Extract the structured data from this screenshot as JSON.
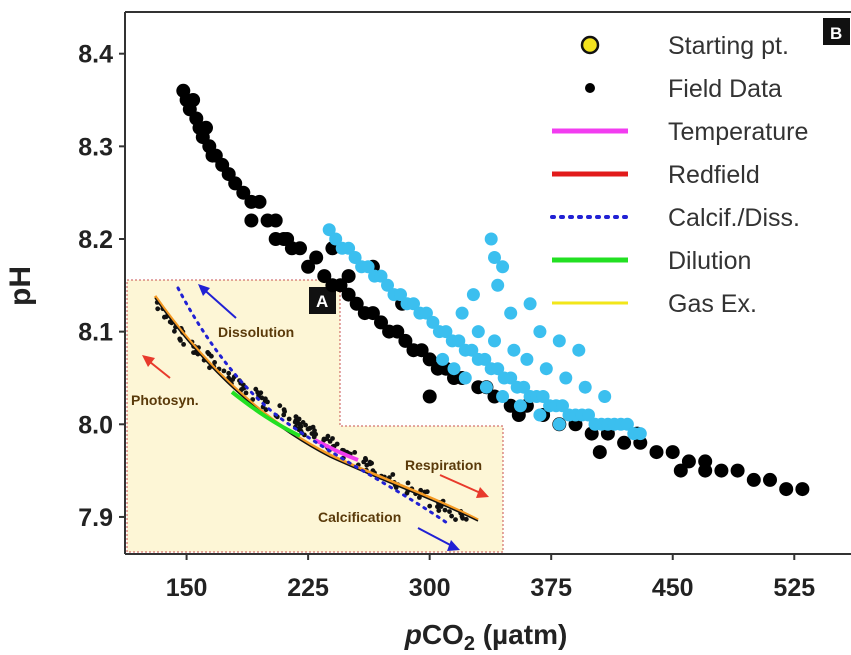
{
  "chart_data": {
    "type": "scatter",
    "xlabel_italic": "p",
    "xlabel_main": "CO",
    "xlabel_sub": "2",
    "xlabel_unit": " (µatm)",
    "ylabel": "pH",
    "xlim": [
      112,
      560
    ],
    "ylim": [
      7.86,
      8.445
    ],
    "x_ticks": [
      150,
      225,
      300,
      375,
      450,
      525
    ],
    "x_tick_labels": [
      "150",
      "225",
      "300",
      "375",
      "450",
      "525"
    ],
    "y_ticks": [
      8.4,
      8.3,
      8.2,
      8.1,
      8.0,
      7.9
    ],
    "y_tick_labels": [
      "8.4",
      "8.3",
      "8.2",
      "8.1",
      "8.0",
      "7.9"
    ],
    "panel_label_main": "B",
    "colors": {
      "field": "#000000",
      "highlight": "#3bbfef",
      "inset_bg": "#fdf6d6",
      "inset_border": "#c85050"
    },
    "series": [
      {
        "name": "Field Data",
        "color": "#000000",
        "points": [
          [
            148,
            8.36
          ],
          [
            150,
            8.35
          ],
          [
            152,
            8.34
          ],
          [
            154,
            8.35
          ],
          [
            156,
            8.33
          ],
          [
            158,
            8.32
          ],
          [
            160,
            8.31
          ],
          [
            162,
            8.32
          ],
          [
            164,
            8.3
          ],
          [
            166,
            8.29
          ],
          [
            168,
            8.29
          ],
          [
            172,
            8.28
          ],
          [
            176,
            8.27
          ],
          [
            180,
            8.26
          ],
          [
            185,
            8.25
          ],
          [
            190,
            8.24
          ],
          [
            195,
            8.24
          ],
          [
            200,
            8.22
          ],
          [
            205,
            8.22
          ],
          [
            210,
            8.2
          ],
          [
            215,
            8.19
          ],
          [
            220,
            8.19
          ],
          [
            225,
            8.17
          ],
          [
            230,
            8.18
          ],
          [
            235,
            8.16
          ],
          [
            240,
            8.15
          ],
          [
            245,
            8.15
          ],
          [
            250,
            8.14
          ],
          [
            255,
            8.13
          ],
          [
            260,
            8.12
          ],
          [
            265,
            8.12
          ],
          [
            270,
            8.11
          ],
          [
            275,
            8.1
          ],
          [
            280,
            8.1
          ],
          [
            285,
            8.09
          ],
          [
            290,
            8.08
          ],
          [
            295,
            8.08
          ],
          [
            300,
            8.07
          ],
          [
            305,
            8.06
          ],
          [
            310,
            8.06
          ],
          [
            315,
            8.05
          ],
          [
            320,
            8.05
          ],
          [
            330,
            8.04
          ],
          [
            340,
            8.03
          ],
          [
            350,
            8.02
          ],
          [
            360,
            8.02
          ],
          [
            370,
            8.01
          ],
          [
            380,
            8.0
          ],
          [
            390,
            8.0
          ],
          [
            400,
            7.99
          ],
          [
            410,
            7.99
          ],
          [
            420,
            7.98
          ],
          [
            430,
            7.98
          ],
          [
            440,
            7.97
          ],
          [
            450,
            7.97
          ],
          [
            460,
            7.96
          ],
          [
            470,
            7.96
          ],
          [
            480,
            7.95
          ],
          [
            490,
            7.95
          ],
          [
            500,
            7.94
          ],
          [
            510,
            7.94
          ],
          [
            520,
            7.93
          ],
          [
            530,
            7.93
          ],
          [
            190,
            8.22
          ],
          [
            205,
            8.2
          ],
          [
            212,
            8.2
          ],
          [
            240,
            8.19
          ],
          [
            250,
            8.16
          ],
          [
            265,
            8.17
          ],
          [
            283,
            8.13
          ],
          [
            300,
            8.03
          ],
          [
            335,
            8.04
          ],
          [
            355,
            8.01
          ],
          [
            405,
            7.97
          ],
          [
            428,
            7.99
          ],
          [
            455,
            7.95
          ],
          [
            470,
            7.95
          ]
        ]
      },
      {
        "name": "",
        "color": "#3bbfef",
        "points": [
          [
            238,
            8.21
          ],
          [
            242,
            8.2
          ],
          [
            246,
            8.19
          ],
          [
            250,
            8.19
          ],
          [
            254,
            8.18
          ],
          [
            258,
            8.17
          ],
          [
            262,
            8.17
          ],
          [
            266,
            8.16
          ],
          [
            270,
            8.16
          ],
          [
            274,
            8.15
          ],
          [
            278,
            8.14
          ],
          [
            282,
            8.14
          ],
          [
            286,
            8.13
          ],
          [
            290,
            8.13
          ],
          [
            294,
            8.12
          ],
          [
            298,
            8.12
          ],
          [
            302,
            8.11
          ],
          [
            306,
            8.1
          ],
          [
            310,
            8.1
          ],
          [
            314,
            8.09
          ],
          [
            318,
            8.09
          ],
          [
            322,
            8.08
          ],
          [
            326,
            8.08
          ],
          [
            330,
            8.07
          ],
          [
            334,
            8.07
          ],
          [
            338,
            8.06
          ],
          [
            342,
            8.06
          ],
          [
            346,
            8.05
          ],
          [
            350,
            8.05
          ],
          [
            354,
            8.04
          ],
          [
            358,
            8.04
          ],
          [
            362,
            8.03
          ],
          [
            366,
            8.03
          ],
          [
            370,
            8.03
          ],
          [
            374,
            8.02
          ],
          [
            378,
            8.02
          ],
          [
            382,
            8.02
          ],
          [
            386,
            8.01
          ],
          [
            390,
            8.01
          ],
          [
            394,
            8.01
          ],
          [
            398,
            8.01
          ],
          [
            402,
            8.0
          ],
          [
            406,
            8.0
          ],
          [
            410,
            8.0
          ],
          [
            414,
            8.0
          ],
          [
            418,
            8.0
          ],
          [
            422,
            8.0
          ],
          [
            426,
            7.99
          ],
          [
            430,
            7.99
          ],
          [
            320,
            8.12
          ],
          [
            330,
            8.1
          ],
          [
            340,
            8.09
          ],
          [
            352,
            8.08
          ],
          [
            360,
            8.07
          ],
          [
            372,
            8.06
          ],
          [
            384,
            8.05
          ],
          [
            396,
            8.04
          ],
          [
            408,
            8.03
          ],
          [
            315,
            8.06
          ],
          [
            335,
            8.04
          ],
          [
            345,
            8.03
          ],
          [
            356,
            8.02
          ],
          [
            368,
            8.01
          ],
          [
            380,
            8.0
          ],
          [
            327,
            8.14
          ],
          [
            342,
            8.15
          ],
          [
            350,
            8.12
          ],
          [
            368,
            8.1
          ],
          [
            380,
            8.09
          ],
          [
            392,
            8.08
          ],
          [
            338,
            8.2
          ],
          [
            340,
            8.18
          ],
          [
            345,
            8.17
          ],
          [
            362,
            8.13
          ],
          [
            308,
            8.07
          ],
          [
            322,
            8.05
          ]
        ]
      }
    ],
    "legend": [
      {
        "label": "Starting pt.",
        "kind": "marker",
        "color": "#f2e21e"
      },
      {
        "label": "Field Data",
        "kind": "dot",
        "color": "#000000"
      },
      {
        "label": "Temperature",
        "kind": "line",
        "color": "#f23cf0",
        "dash": ""
      },
      {
        "label": "Redfield",
        "kind": "line",
        "color": "#e21b1b",
        "dash": ""
      },
      {
        "label": "Calcif./Diss.",
        "kind": "line",
        "color": "#2121d4",
        "dash": "dots"
      },
      {
        "label": "Dilution",
        "kind": "line",
        "color": "#22e022",
        "dash": ""
      },
      {
        "label": "Gas Ex.",
        "kind": "line",
        "color": "#f2e619",
        "dash": ""
      }
    ],
    "legend_position": "top-right",
    "inset": {
      "panel_label": "A",
      "labels": {
        "dissolution": "Dissolution",
        "photosyn": "Photosyn.",
        "respiration": "Respiration",
        "calcification": "Calcification"
      }
    }
  }
}
